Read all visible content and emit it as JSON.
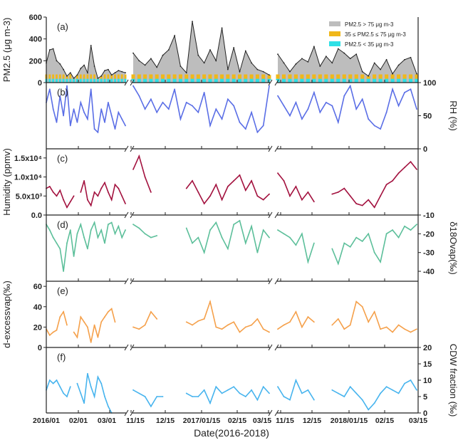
{
  "chart_data": [
    {
      "type": "area",
      "panel_label": "(a)",
      "ylabel": "PM2.5 (μg m-3)",
      "ylim": [
        0,
        600
      ],
      "yticks": [
        "0",
        "200",
        "400",
        "600"
      ],
      "axis_side": "left",
      "legend": {
        "placement": "top-right",
        "entries": [
          {
            "label": "PM2.5 > 75 μg m-3",
            "color": "#bdbdbd"
          },
          {
            "label": "35 ≤ PM2.5 ≤ 75 μg m-3",
            "color": "#f0b71a"
          },
          {
            "label": "PM2.5 < 35 μg m-3",
            "color": "#2ee0e6"
          }
        ]
      },
      "color": "#bdbdbd",
      "segments": [
        [
          180,
          300,
          310,
          200,
          170,
          120,
          60,
          90,
          40,
          70,
          130,
          160,
          90,
          340,
          150,
          40,
          60,
          110,
          120,
          70,
          90,
          110,
          100,
          90
        ],
        [
          270,
          200,
          160,
          220,
          140,
          250,
          300,
          430,
          150,
          90,
          560,
          250,
          180,
          300,
          200,
          500,
          120,
          320,
          100,
          290,
          180,
          120,
          100,
          70
        ],
        [
          260,
          180,
          100,
          170,
          220,
          190,
          330,
          150,
          240,
          180,
          310,
          270,
          220,
          260,
          100,
          60,
          180,
          120,
          210,
          80,
          160,
          210,
          230,
          80
        ]
      ]
    },
    {
      "type": "line",
      "panel_label": "(b)",
      "ylabel": "RH (%)",
      "ylim": [
        0,
        100
      ],
      "yticks": [
        "0",
        "50",
        "100"
      ],
      "axis_side": "right",
      "color": "#5a6ee6",
      "segments": [
        [
          70,
          90,
          60,
          40,
          80,
          50,
          95,
          35,
          60,
          40,
          70,
          55,
          45,
          90,
          30,
          25,
          60,
          40,
          70,
          50,
          30,
          55,
          45,
          35
        ],
        [
          95,
          80,
          60,
          75,
          55,
          70,
          60,
          90,
          45,
          70,
          65,
          55,
          85,
          35,
          60,
          45,
          75,
          65,
          40,
          30,
          55,
          25,
          35,
          95
        ],
        [
          80,
          65,
          50,
          70,
          45,
          60,
          85,
          55,
          70,
          65,
          40,
          80,
          95,
          60,
          75,
          45,
          35,
          30,
          55,
          90,
          65,
          85,
          90,
          60
        ]
      ]
    },
    {
      "type": "line",
      "panel_label": "(c)",
      "ylabel": "Humidity (ppmv)",
      "ylim": [
        0,
        17400
      ],
      "yticks": [
        "0.0",
        "5.0x10³",
        "1.0x10⁴",
        "1.5x10⁴"
      ],
      "axis_side": "left",
      "color": "#a3123f",
      "segments": [
        [
          7000,
          7500,
          6000,
          5000,
          6500,
          4000,
          2000,
          3500,
          5000,
          null,
          6000,
          9000,
          4000,
          2500,
          6000,
          5000,
          7000,
          8500,
          6000,
          4000,
          8000,
          7000,
          5000,
          3000
        ],
        [
          12000,
          15500,
          10000,
          6000,
          null,
          null,
          null,
          null,
          null,
          7000,
          9000,
          6000,
          3000,
          5000,
          8000,
          4000,
          7500,
          9000,
          10500,
          6500,
          9000,
          5000,
          4000,
          5500
        ],
        [
          11000,
          9000,
          5000,
          7500,
          4000,
          6000,
          3500,
          null,
          null,
          5500,
          6000,
          7000,
          5000,
          3000,
          2500,
          4000,
          2000,
          5000,
          8000,
          9000,
          11000,
          12500,
          14000,
          12000
        ]
      ]
    },
    {
      "type": "line",
      "panel_label": "(d)",
      "ylabel": "δ18Ovap(‰)",
      "ylim": [
        -45.3,
        -10
      ],
      "yticks": [
        "-40",
        "-30",
        "-20",
        "-10"
      ],
      "axis_side": "right",
      "color": "#5cbf9a",
      "segments": [
        [
          -15,
          -18,
          -22,
          -25,
          -28,
          -40,
          -25,
          -18,
          -32,
          -20,
          -15,
          -22,
          -28,
          -18,
          -14,
          -22,
          -18,
          -25,
          -15,
          -14,
          -20,
          -16,
          -22,
          -18
        ],
        [
          -15,
          -17,
          -20,
          -22,
          -21,
          null,
          null,
          null,
          null,
          -17,
          -25,
          -22,
          -30,
          -18,
          -14,
          -22,
          -28,
          -15,
          -13,
          -25,
          -16,
          -30,
          -18,
          -22
        ],
        [
          -18,
          -20,
          -22,
          -26,
          -20,
          -35,
          -25,
          null,
          null,
          -28,
          -36,
          -25,
          -27,
          -22,
          -24,
          -20,
          -30,
          -35,
          -20,
          -18,
          -22,
          -16,
          -18,
          -15
        ]
      ]
    },
    {
      "type": "line",
      "panel_label": "(e)",
      "ylabel": "d-excessvap(‰)",
      "ylim": [
        0,
        65
      ],
      "yticks": [
        "0",
        "20",
        "40",
        "60"
      ],
      "axis_side": "left",
      "color": "#f5a04a",
      "segments": [
        [
          18,
          12,
          15,
          17,
          30,
          35,
          22,
          null,
          15,
          10,
          30,
          25,
          20,
          5,
          22,
          10,
          25,
          30,
          35,
          38,
          25,
          null,
          null,
          null
        ],
        [
          20,
          18,
          22,
          35,
          28,
          null,
          null,
          null,
          null,
          25,
          22,
          26,
          28,
          45,
          20,
          18,
          22,
          25,
          15,
          20,
          22,
          28,
          18,
          15
        ],
        [
          18,
          22,
          25,
          35,
          20,
          30,
          25,
          null,
          null,
          22,
          28,
          18,
          22,
          45,
          40,
          25,
          35,
          18,
          20,
          15,
          22,
          18,
          15,
          18
        ]
      ]
    },
    {
      "type": "line",
      "panel_label": "(f)",
      "ylabel": "CDW fraction (‰)",
      "ylim": [
        0,
        20
      ],
      "yticks": [
        "0",
        "5",
        "10",
        "15",
        "20"
      ],
      "axis_side": "right",
      "color": "#47b4ee",
      "segments": [
        [
          7,
          10,
          9,
          10,
          8,
          6,
          5,
          8,
          null,
          9,
          6,
          3,
          12,
          8,
          5,
          11,
          9,
          5,
          2,
          0,
          null,
          null,
          null,
          null
        ],
        [
          7,
          6,
          5,
          2,
          5,
          5,
          null,
          null,
          null,
          6,
          5,
          5,
          7,
          3,
          8,
          6,
          7,
          8,
          6,
          5,
          7,
          4,
          8,
          6
        ],
        [
          8,
          5,
          4,
          10,
          6,
          7,
          4,
          null,
          null,
          7,
          6,
          5,
          8,
          6,
          4,
          1,
          3,
          6,
          8,
          7,
          6,
          9,
          10,
          7
        ]
      ]
    }
  ],
  "x_axis": {
    "label": "Date(2016-2018)",
    "ticks": [
      "2016/01",
      "02/01",
      "03/01",
      "11/15",
      "12/15",
      "2017/01/15",
      "02/15",
      "03/15",
      "11/15",
      "12/15",
      "2018/01/15",
      "02/15",
      "03/15"
    ],
    "axis_break": true
  }
}
